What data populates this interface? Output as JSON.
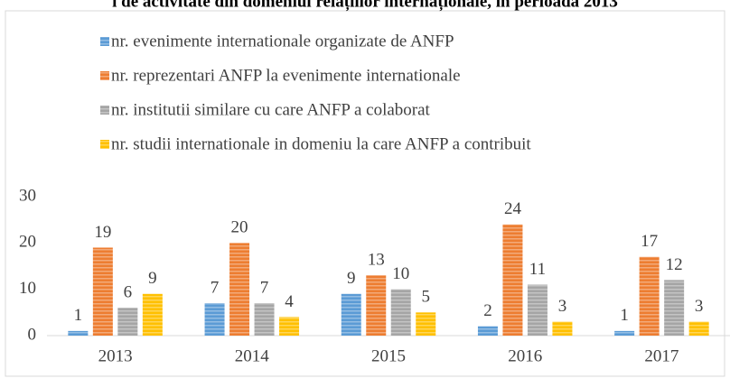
{
  "chart_data": {
    "type": "bar",
    "title": "i de activitate din domeniul relațiilor internaționale, în perioada 2013",
    "categories": [
      "2013",
      "2014",
      "2015",
      "2016",
      "2017"
    ],
    "series": [
      {
        "name": "nr. evenimente internationale organizate de ANFP",
        "color": "#5b9bd5",
        "values": [
          1,
          7,
          9,
          2,
          1
        ]
      },
      {
        "name": "nr. reprezentari ANFP la evenimente internationale",
        "color": "#ed7d31",
        "values": [
          19,
          20,
          13,
          24,
          17
        ]
      },
      {
        "name": "nr. institutii similare cu care ANFP a colaborat",
        "color": "#a5a5a5",
        "values": [
          6,
          7,
          10,
          11,
          12
        ]
      },
      {
        "name": "nr. studii internationale in domeniu la care ANFP a contribuit",
        "color": "#ffc000",
        "values": [
          9,
          4,
          5,
          3,
          3
        ]
      }
    ],
    "ylim": [
      0,
      30
    ],
    "yticks": [
      0,
      10,
      20,
      30
    ],
    "grid": false
  }
}
